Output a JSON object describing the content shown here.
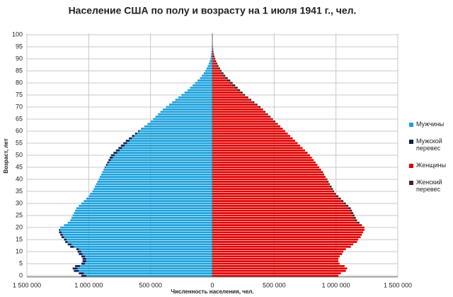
{
  "chart_data": {
    "type": "bar",
    "orientation": "horizontal",
    "stacked": true,
    "title": "Население США по полу и возрасту на 1 июля 1941 г., чел.",
    "x_label": "Численность  населения, чел.",
    "y_label": "Возраст, лет",
    "y": [
      0,
      1,
      2,
      3,
      4,
      5,
      6,
      7,
      8,
      9,
      10,
      11,
      12,
      13,
      14,
      15,
      16,
      17,
      18,
      19,
      20,
      21,
      22,
      23,
      24,
      25,
      26,
      27,
      28,
      29,
      30,
      31,
      32,
      33,
      34,
      35,
      36,
      37,
      38,
      39,
      40,
      41,
      42,
      43,
      44,
      45,
      46,
      47,
      48,
      49,
      50,
      51,
      52,
      53,
      54,
      55,
      56,
      57,
      58,
      59,
      60,
      61,
      62,
      63,
      64,
      65,
      66,
      67,
      68,
      69,
      70,
      71,
      72,
      73,
      74,
      75,
      76,
      77,
      78,
      79,
      80,
      81,
      82,
      83,
      84,
      85,
      86,
      87,
      88,
      89,
      90,
      91,
      92,
      93,
      94,
      95,
      96,
      97,
      98,
      99,
      100
    ],
    "ylim": [
      0,
      100
    ],
    "yticks": [
      0,
      5,
      10,
      15,
      20,
      25,
      30,
      35,
      40,
      45,
      50,
      55,
      60,
      65,
      70,
      75,
      80,
      85,
      90,
      95,
      100
    ],
    "xlim": [
      -1500000,
      1500000
    ],
    "xticks": [
      {
        "value": -1500000,
        "label": "1 500 000"
      },
      {
        "value": -1000000,
        "label": "1 000 000"
      },
      {
        "value": -500000,
        "label": "500 000"
      },
      0,
      {
        "value": 500000,
        "label": "500 000"
      },
      {
        "value": 1000000,
        "label": "1 000 000"
      },
      {
        "value": 1500000,
        "label": "1 500 000"
      }
    ],
    "grid": true,
    "legend": "right",
    "series": [
      {
        "name": "Мужчины",
        "color": "#1ba1dc",
        "values": [
          -1020000,
          -1040000,
          -1080000,
          -1090000,
          -1070000,
          -1030000,
          -1020000,
          -1020000,
          -1030000,
          -1050000,
          -1060000,
          -1080000,
          -1120000,
          -1140000,
          -1170000,
          -1180000,
          -1200000,
          -1210000,
          -1220000,
          -1230000,
          -1230000,
          -1200000,
          -1170000,
          -1150000,
          -1140000,
          -1130000,
          -1120000,
          -1110000,
          -1100000,
          -1080000,
          -1060000,
          -1040000,
          -1020000,
          -1000000,
          -990000,
          -970000,
          -960000,
          -950000,
          -940000,
          -930000,
          -920000,
          -910000,
          -900000,
          -890000,
          -880000,
          -865000,
          -850000,
          -835000,
          -820000,
          -805000,
          -790000,
          -770000,
          -750000,
          -730000,
          -710000,
          -690000,
          -670000,
          -650000,
          -630000,
          -610000,
          -590000,
          -570000,
          -550000,
          -525000,
          -500000,
          -480000,
          -460000,
          -440000,
          -420000,
          -400000,
          -375000,
          -350000,
          -325000,
          -300000,
          -275000,
          -250000,
          -225000,
          -200000,
          -180000,
          -160000,
          -140000,
          -120000,
          -100000,
          -85000,
          -70000,
          -58000,
          -47000,
          -37000,
          -29000,
          -22000,
          -16000,
          -12000,
          -9000,
          -6000,
          -4000,
          -3000,
          -2000,
          -1000,
          -1000,
          0,
          -1000
        ]
      },
      {
        "name": "Мужской перевес",
        "color": "#0b1f57",
        "values": [
          -40000,
          -40000,
          -40000,
          -40000,
          -40000,
          -30000,
          -30000,
          -30000,
          -30000,
          -30000,
          -30000,
          -20000,
          -30000,
          -30000,
          -20000,
          -20000,
          -20000,
          -20000,
          -20000,
          -10000,
          0,
          0,
          0,
          0,
          0,
          0,
          0,
          0,
          0,
          0,
          0,
          0,
          0,
          0,
          0,
          0,
          0,
          0,
          0,
          0,
          0,
          0,
          0,
          0,
          0,
          -5000,
          -10000,
          -15000,
          -20000,
          -25000,
          -30000,
          -30000,
          -30000,
          -30000,
          -30000,
          -30000,
          -30000,
          -25000,
          -20000,
          -15000,
          -10000,
          -5000,
          0,
          0,
          0,
          0,
          0,
          0,
          0,
          0,
          0,
          0,
          0,
          0,
          0,
          0,
          0,
          0,
          0,
          0,
          0,
          0,
          0,
          0,
          0,
          0,
          0,
          0,
          0,
          0,
          0,
          0,
          0,
          0,
          0,
          0,
          0,
          0,
          0,
          0,
          0
        ]
      },
      {
        "name": "Женщины",
        "color": "#e00000",
        "values": [
          1020000,
          1040000,
          1080000,
          1090000,
          1070000,
          1030000,
          1020000,
          1020000,
          1030000,
          1050000,
          1060000,
          1080000,
          1120000,
          1140000,
          1170000,
          1180000,
          1200000,
          1210000,
          1220000,
          1230000,
          1230000,
          1200000,
          1170000,
          1150000,
          1140000,
          1130000,
          1120000,
          1110000,
          1100000,
          1080000,
          1060000,
          1040000,
          1020000,
          1000000,
          990000,
          970000,
          960000,
          950000,
          940000,
          930000,
          920000,
          910000,
          900000,
          890000,
          880000,
          865000,
          850000,
          835000,
          820000,
          805000,
          790000,
          770000,
          750000,
          730000,
          710000,
          690000,
          670000,
          650000,
          630000,
          610000,
          590000,
          570000,
          550000,
          525000,
          500000,
          480000,
          460000,
          440000,
          420000,
          400000,
          375000,
          350000,
          325000,
          300000,
          275000,
          250000,
          225000,
          200000,
          180000,
          160000,
          140000,
          120000,
          100000,
          85000,
          70000,
          58000,
          47000,
          37000,
          29000,
          22000,
          16000,
          12000,
          9000,
          6000,
          4000,
          3000,
          2000,
          1000,
          1000,
          0,
          1000
        ]
      },
      {
        "name": "Женский перевес",
        "color": "#5a1c1c",
        "values": [
          0,
          0,
          0,
          0,
          0,
          0,
          0,
          0,
          0,
          0,
          0,
          0,
          0,
          0,
          0,
          0,
          0,
          0,
          0,
          0,
          0,
          10000,
          20000,
          20000,
          20000,
          20000,
          20000,
          20000,
          20000,
          20000,
          20000,
          20000,
          20000,
          20000,
          10000,
          15000,
          15000,
          15000,
          10000,
          10000,
          10000,
          5000,
          5000,
          5000,
          0,
          0,
          0,
          0,
          0,
          0,
          0,
          0,
          0,
          0,
          0,
          0,
          0,
          0,
          0,
          0,
          0,
          0,
          0,
          5000,
          10000,
          10000,
          10000,
          10000,
          10000,
          10000,
          15000,
          15000,
          15000,
          15000,
          15000,
          15000,
          20000,
          25000,
          25000,
          25000,
          25000,
          25000,
          25000,
          20000,
          20000,
          17000,
          15000,
          13000,
          11000,
          9000,
          8000,
          6000,
          4000,
          3000,
          3000,
          2000,
          1000,
          1000,
          0,
          1000,
          0
        ]
      }
    ]
  }
}
